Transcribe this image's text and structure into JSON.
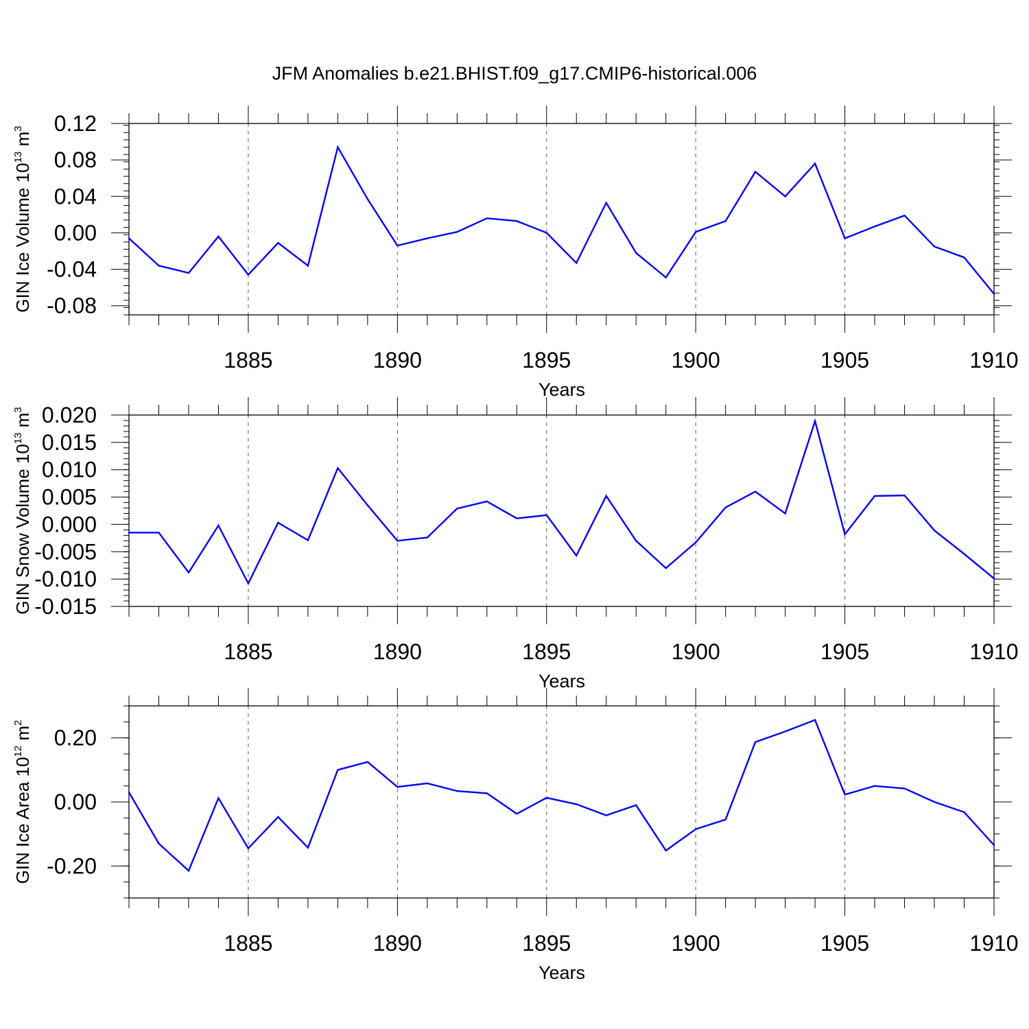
{
  "title": "JFM Anomalies b.e21.BHIST.f09_g17.CMIP6-historical.006",
  "colors": {
    "line": "#0000ff",
    "axis": "#000000",
    "grid": "#555555"
  },
  "chart_data": [
    {
      "type": "line",
      "ylabel": {
        "text": "GIN Ice Volume 10",
        "exp": "13",
        "unit": " m",
        "unit_exp": "3"
      },
      "xlabel": "Years",
      "xlim": [
        1881,
        1910
      ],
      "ylim": [
        -0.09,
        0.12
      ],
      "yticks": [
        0.12,
        0.08,
        0.04,
        0.0,
        -0.04,
        -0.08
      ],
      "yticklabels": [
        "0.12",
        "0.08",
        "0.04",
        "0.00",
        "-0.04",
        "-0.08"
      ],
      "yminor": 0.008,
      "xticks": [
        1885,
        1890,
        1895,
        1900,
        1905,
        1910
      ],
      "xticklabels": [
        "1885",
        "1890",
        "1895",
        "1900",
        "1905",
        "1910"
      ],
      "grid": "dashed vertical at major x ticks",
      "series": [
        {
          "name": "GIN Ice Volume",
          "x": [
            1881,
            1882,
            1883,
            1884,
            1885,
            1886,
            1887,
            1888,
            1889,
            1890,
            1891,
            1892,
            1893,
            1894,
            1895,
            1896,
            1897,
            1898,
            1899,
            1900,
            1901,
            1902,
            1903,
            1904,
            1905,
            1906,
            1907,
            1908,
            1909,
            1910
          ],
          "values": [
            -0.006,
            -0.036,
            -0.044,
            -0.004,
            -0.046,
            -0.011,
            -0.036,
            0.094,
            0.037,
            -0.014,
            -0.006,
            0.001,
            0.016,
            0.013,
            0.0,
            -0.033,
            0.033,
            -0.022,
            -0.049,
            0.001,
            0.013,
            0.067,
            0.04,
            0.076,
            -0.006,
            0.007,
            0.019,
            -0.015,
            -0.027,
            -0.067
          ]
        }
      ]
    },
    {
      "type": "line",
      "ylabel": {
        "text": "GIN Snow Volume 10",
        "exp": "13",
        "unit": " m",
        "unit_exp": "3"
      },
      "xlabel": "Years",
      "xlim": [
        1881,
        1910
      ],
      "ylim": [
        -0.015,
        0.02
      ],
      "yticks": [
        0.02,
        0.015,
        0.01,
        0.005,
        0.0,
        -0.005,
        -0.01,
        -0.015
      ],
      "yticklabels": [
        "0.020",
        "0.015",
        "0.010",
        "0.005",
        "0.000",
        "-0.005",
        "-0.010",
        "-0.015"
      ],
      "yminor": 0.001,
      "xticks": [
        1885,
        1890,
        1895,
        1900,
        1905,
        1910
      ],
      "xticklabels": [
        "1885",
        "1890",
        "1895",
        "1900",
        "1905",
        "1910"
      ],
      "grid": "dashed vertical at major x ticks",
      "series": [
        {
          "name": "GIN Snow Volume",
          "x": [
            1881,
            1882,
            1883,
            1884,
            1885,
            1886,
            1887,
            1888,
            1889,
            1890,
            1891,
            1892,
            1893,
            1894,
            1895,
            1896,
            1897,
            1898,
            1899,
            1900,
            1901,
            1902,
            1903,
            1904,
            1905,
            1906,
            1907,
            1908,
            1909,
            1910
          ],
          "values": [
            -0.0015,
            -0.0015,
            -0.0088,
            -0.0002,
            -0.0108,
            0.0003,
            -0.0029,
            0.0103,
            0.0035,
            -0.003,
            -0.0024,
            0.0029,
            0.0042,
            0.0011,
            0.0017,
            -0.0057,
            0.0052,
            -0.003,
            -0.008,
            -0.0033,
            0.0031,
            0.006,
            0.002,
            0.0189,
            -0.0018,
            0.0052,
            0.0053,
            -0.0011,
            -0.0054,
            -0.0099
          ]
        }
      ]
    },
    {
      "type": "line",
      "ylabel": {
        "text": "GIN Ice Area 10",
        "exp": "12",
        "unit": " m",
        "unit_exp": "2"
      },
      "xlabel": "Years",
      "xlim": [
        1881,
        1910
      ],
      "ylim": [
        -0.3,
        0.3
      ],
      "yticks": [
        0.2,
        0.0,
        -0.2
      ],
      "yticklabels": [
        "0.20",
        "0.00",
        "-0.20"
      ],
      "yminor": 0.05,
      "xticks": [
        1885,
        1890,
        1895,
        1900,
        1905,
        1910
      ],
      "xticklabels": [
        "1885",
        "1890",
        "1895",
        "1900",
        "1905",
        "1910"
      ],
      "grid": "dashed vertical at major x ticks",
      "series": [
        {
          "name": "GIN Ice Area",
          "x": [
            1881,
            1882,
            1883,
            1884,
            1885,
            1886,
            1887,
            1888,
            1889,
            1890,
            1891,
            1892,
            1893,
            1894,
            1895,
            1896,
            1897,
            1898,
            1899,
            1900,
            1901,
            1902,
            1903,
            1904,
            1905,
            1906,
            1907,
            1908,
            1909,
            1910
          ],
          "values": [
            0.03,
            -0.13,
            -0.215,
            0.012,
            -0.145,
            -0.047,
            -0.143,
            0.1,
            0.125,
            0.047,
            0.058,
            0.034,
            0.027,
            -0.037,
            0.013,
            -0.007,
            -0.042,
            -0.01,
            -0.152,
            -0.085,
            -0.055,
            0.187,
            0.22,
            0.256,
            0.023,
            0.05,
            0.042,
            0.0,
            -0.032,
            -0.135
          ]
        }
      ]
    }
  ]
}
